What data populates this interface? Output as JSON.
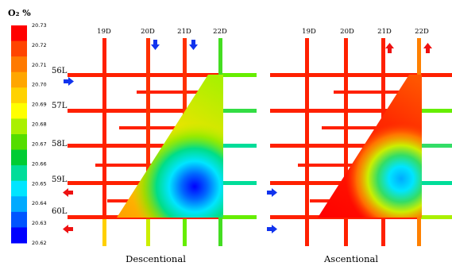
{
  "chart_data": {
    "type": "heatmap",
    "colorbar": {
      "unit_label": "O₂ %",
      "ticks": [
        "20.73",
        "20.72",
        "20.71",
        "20.70",
        "20.69",
        "20.68",
        "20.67",
        "20.66",
        "20.65",
        "20.64",
        "20.63",
        "20.62"
      ],
      "range": [
        20.62,
        20.73
      ],
      "colors": [
        "#ff0000",
        "#ff4400",
        "#ff7a00",
        "#ffa600",
        "#ffd200",
        "#ffff00",
        "#aaf000",
        "#55dd00",
        "#00cc33",
        "#00dd99",
        "#00e5ff",
        "#00aaff",
        "#0055ff",
        "#0000ff"
      ]
    },
    "grid": {
      "columns": [
        "19D",
        "20D",
        "21D",
        "22D"
      ],
      "levels": [
        "56L",
        "57L",
        "58L",
        "59L",
        "60L"
      ]
    },
    "panels": [
      {
        "caption": "Descentional",
        "arrow_direction": "down",
        "min_value": 20.62,
        "max_value": 20.73
      },
      {
        "caption": "Ascentional",
        "arrow_direction": "up",
        "min_value": 20.64,
        "max_value": 20.73
      }
    ]
  }
}
